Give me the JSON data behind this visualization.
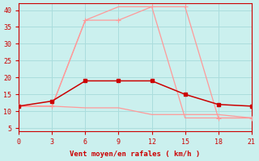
{
  "xlabel": "Vent moyen/en rafales ( km/h )",
  "x": [
    0,
    3,
    6,
    9,
    12,
    15,
    18,
    21
  ],
  "line_top": [
    11.5,
    11.5,
    37,
    41,
    41,
    8,
    8,
    8
  ],
  "line_flat_top": [
    11.5,
    11.5,
    37,
    37,
    41,
    41,
    8,
    8
  ],
  "line_bottom": [
    11.5,
    11.5,
    11,
    11,
    9,
    9,
    9,
    8
  ],
  "line_dark": [
    11.5,
    13,
    19,
    19,
    19,
    15,
    12,
    11.5
  ],
  "color_light": "#FF9999",
  "color_dark": "#CC0000",
  "bg_color": "#CBF0EE",
  "grid_color": "#AADDDD",
  "ylim": [
    4,
    42
  ],
  "xlim": [
    0,
    21
  ],
  "yticks": [
    5,
    10,
    15,
    20,
    25,
    30,
    35,
    40
  ],
  "xticks": [
    0,
    3,
    6,
    9,
    12,
    15,
    18,
    21
  ]
}
